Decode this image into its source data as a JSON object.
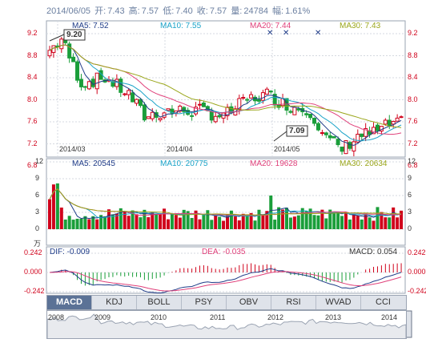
{
  "header": {
    "date": "2014/06/05",
    "open_label": "开:",
    "open": "7.43",
    "high_label": "高:",
    "high": "7.57",
    "low_label": "低:",
    "low": "7.40",
    "close_label": "收:",
    "close": "7.57",
    "vol_label": "量:",
    "vol": "24784",
    "chg_label": "幅:",
    "chg": "1.61%"
  },
  "price_legend": {
    "ma5": "MA5: 7.52",
    "ma10": "MA10: 7.55",
    "ma20": "MA20: 7.44",
    "ma30": "MA30: 7.43"
  },
  "price_axis": [
    "9.2",
    "8.8",
    "8.4",
    "8.0",
    "7.6",
    "7.2",
    "6.8"
  ],
  "date_labels": [
    "2014/03",
    "2014/04",
    "2014/05"
  ],
  "annotations": {
    "high_mark": "9.20",
    "low_mark": "7.09"
  },
  "volume_legend": {
    "ma5": "MA5: 20545",
    "ma10": "MA10: 20775",
    "ma20": "MA20: 19628",
    "ma30": "MA30: 20634"
  },
  "volume_axis": [
    "12",
    "9",
    "6",
    "3",
    "0"
  ],
  "volume_unit": "万",
  "macd_legend": {
    "dif": "DIF: -0.009",
    "dea": "DEA: -0.035",
    "macd": "MACD: 0.054"
  },
  "macd_axis": [
    "0.242",
    "0.000",
    "-0.242"
  ],
  "tabs": [
    "MACD",
    "KDJ",
    "BOLL",
    "PSY",
    "OBV",
    "RSI",
    "WVAD",
    "CCI"
  ],
  "active_tab": "MACD",
  "timeline_years": [
    "2008",
    "2009",
    "2010",
    "2011",
    "2012",
    "2013",
    "2014"
  ],
  "colors": {
    "up": "#d0021b",
    "down": "#1a9e3a",
    "ma5": "#1f3c88",
    "ma10": "#1aa3c8",
    "ma20": "#e0407a",
    "ma30": "#9aa61a",
    "grid": "#c8ccd4"
  }
}
